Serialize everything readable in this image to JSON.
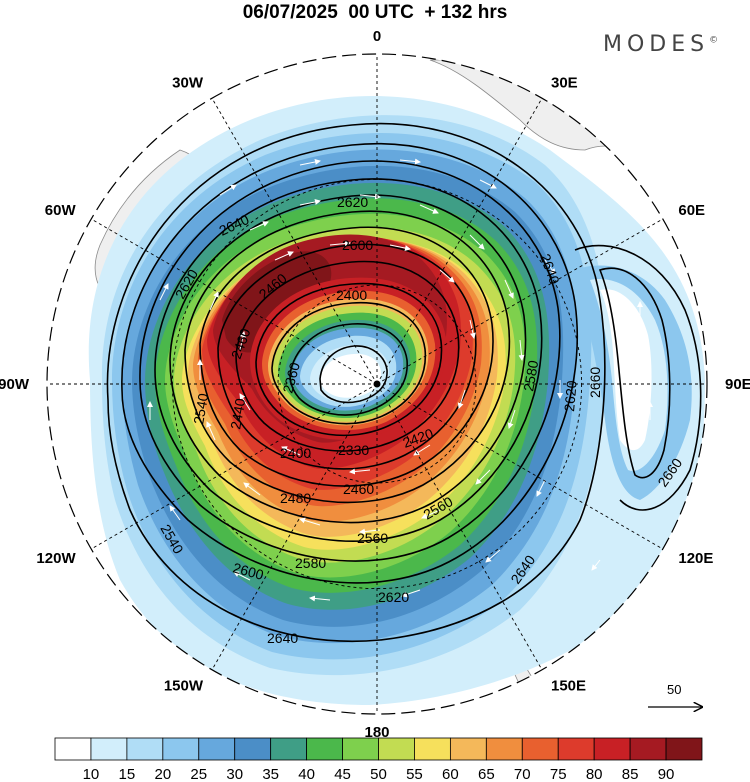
{
  "title": "06/07/2025  00 UTC  + 132 hrs",
  "brand": "MODES",
  "brand_mark": "©",
  "longitude_labels": [
    {
      "text": "0",
      "lon": 0
    },
    {
      "text": "30E",
      "lon": 30
    },
    {
      "text": "60E",
      "lon": 60
    },
    {
      "text": "90E",
      "lon": 90
    },
    {
      "text": "120E",
      "lon": 120
    },
    {
      "text": "150E",
      "lon": 150
    },
    {
      "text": "180",
      "lon": 180
    },
    {
      "text": "150W",
      "lon": -150
    },
    {
      "text": "120W",
      "lon": -120
    },
    {
      "text": "90W",
      "lon": -90
    },
    {
      "text": "60W",
      "lon": -60
    },
    {
      "text": "30W",
      "lon": -30
    }
  ],
  "contour_labels": [
    "2620",
    "2640",
    "2620",
    "2600",
    "2460",
    "2460",
    "2400",
    "2360",
    "2540",
    "2440",
    "2400",
    "2330",
    "2420",
    "2480",
    "2460",
    "2560",
    "2580",
    "2600",
    "2620",
    "2560",
    "2640",
    "2660",
    "2660",
    "2640",
    "2620",
    "2640",
    "2580",
    "2540"
  ],
  "reference_vector": {
    "label": "50"
  },
  "colorbar": {
    "ticks": [
      "10",
      "15",
      "20",
      "25",
      "30",
      "35",
      "40",
      "45",
      "50",
      "55",
      "60",
      "65",
      "70",
      "75",
      "80",
      "85",
      "90"
    ],
    "colors": [
      "#ffffff",
      "#d2eefb",
      "#b0ddf6",
      "#8cc7ee",
      "#66a8dd",
      "#4b8ec7",
      "#3f9e86",
      "#4bb84b",
      "#7ed04d",
      "#c2dc52",
      "#f6e05c",
      "#f4b85a",
      "#f08e3e",
      "#e8602f",
      "#dd3b2c",
      "#c82025",
      "#a51a22",
      "#801519"
    ]
  },
  "colors": {
    "land": "#efefef",
    "coast": "#8a8a8a",
    "contour": "#000000",
    "vector": "#ffffff"
  },
  "icons": {
    "pole": "pole-dot-icon",
    "vector": "reference-arrow-icon"
  }
}
